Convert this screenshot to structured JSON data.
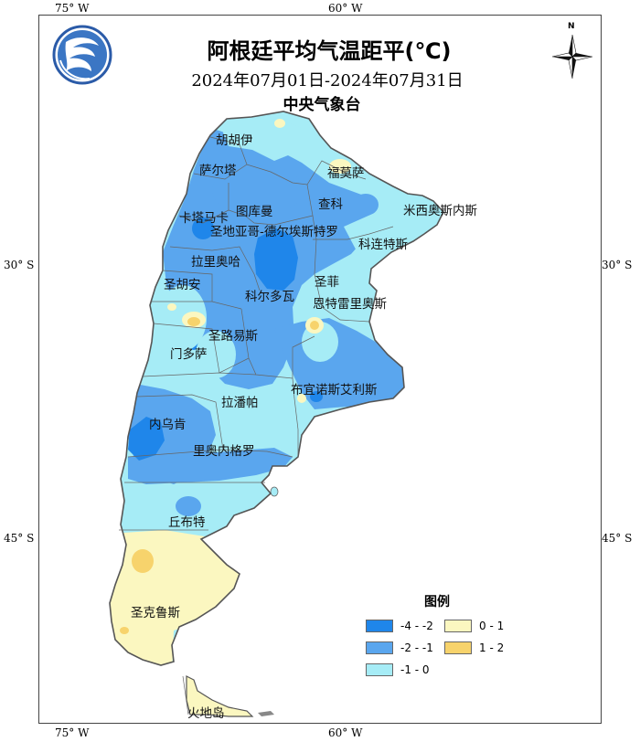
{
  "title": "阿根廷平均气温距平(℃)",
  "date_range": "2024年07月01日-2024年07月31日",
  "issuer": "中央气象台",
  "compass_label": "N",
  "lon_labels": {
    "w75": "75° W",
    "w60": "60° W"
  },
  "lat_labels": {
    "s30": "30° S",
    "s45": "45° S"
  },
  "legend": {
    "title": "图例",
    "items": [
      {
        "label": "-4 - -2",
        "color": "#1f86ea"
      },
      {
        "label": "-2 - -1",
        "color": "#5aa6ee"
      },
      {
        "label": "-1 - 0",
        "color": "#a6ecf6"
      },
      {
        "label": "0 - 1",
        "color": "#fbf7c0"
      },
      {
        "label": "1 - 2",
        "color": "#f7d36c"
      }
    ]
  },
  "provinces": [
    {
      "name": "胡胡伊"
    },
    {
      "name": "萨尔塔"
    },
    {
      "name": "福莫萨"
    },
    {
      "name": "查科"
    },
    {
      "name": "米西奥斯内斯"
    },
    {
      "name": "卡塔马卡"
    },
    {
      "name": "图库曼"
    },
    {
      "name": "圣地亚哥-德尔埃斯特罗"
    },
    {
      "name": "科连特斯"
    },
    {
      "name": "拉里奥哈"
    },
    {
      "name": "圣胡安"
    },
    {
      "name": "圣菲"
    },
    {
      "name": "科尔多瓦"
    },
    {
      "name": "恩特雷里奥斯"
    },
    {
      "name": "圣路易斯"
    },
    {
      "name": "门多萨"
    },
    {
      "name": "布宜诺斯艾利斯"
    },
    {
      "name": "拉潘帕"
    },
    {
      "name": "内乌肯"
    },
    {
      "name": "里奥内格罗"
    },
    {
      "name": "丘布特"
    },
    {
      "name": "圣克鲁斯"
    },
    {
      "name": "火地岛"
    }
  ]
}
